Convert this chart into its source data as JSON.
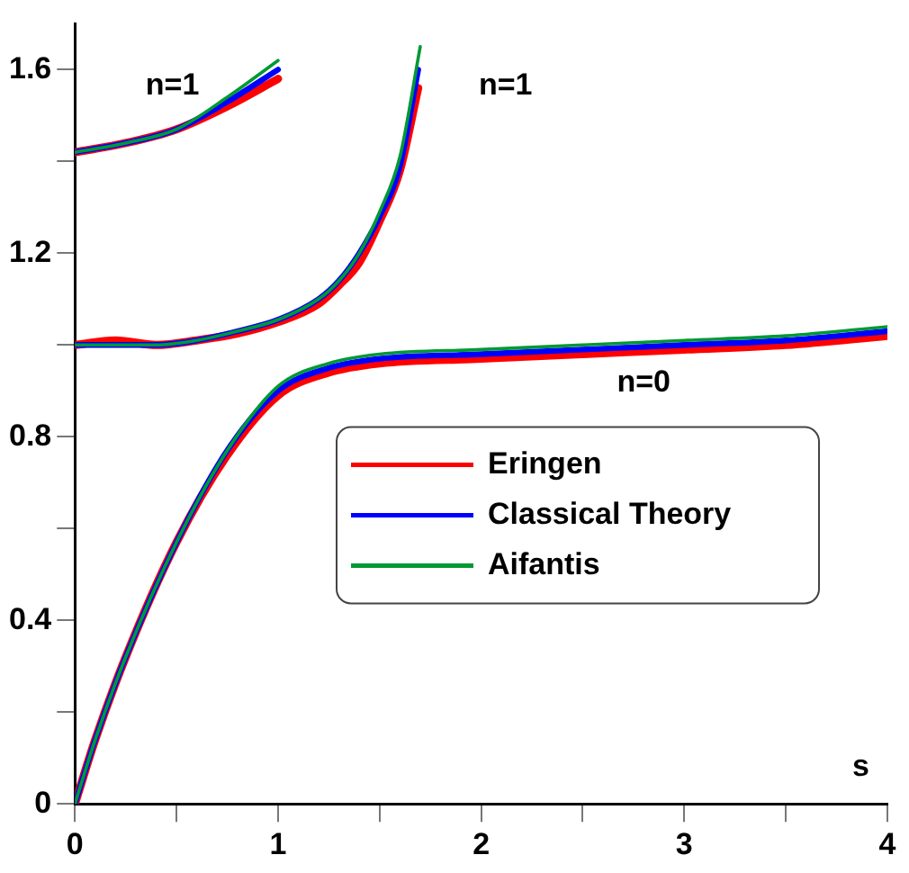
{
  "chart_data": {
    "type": "line",
    "xlabel": "s",
    "xlim": [
      0,
      4
    ],
    "ylim": [
      0,
      1.7
    ],
    "xticks": [
      0,
      {
        "value": 0.5,
        "label": null
      },
      1,
      {
        "value": 1.5,
        "label": null
      },
      2,
      {
        "value": 2.5,
        "label": null
      },
      3,
      {
        "value": 3.5,
        "label": null
      },
      4
    ],
    "yticks": [
      0,
      {
        "value": 0.2,
        "label": null
      },
      0.4,
      {
        "value": 0.6,
        "label": null
      },
      0.8,
      {
        "value": 1.0,
        "label": null
      },
      1.2,
      {
        "value": 1.4,
        "label": null
      },
      1.6
    ],
    "grid": false,
    "legend": "right",
    "marker": "none",
    "line_style": "solid",
    "annotations": [
      "n=1",
      "n=1",
      "n=0"
    ],
    "series": [
      {
        "color": "#ff0000",
        "x": [
          0,
          0.25,
          0.5,
          0.75,
          1
        ],
        "values": [
          1.42,
          1.44,
          1.47,
          1.52,
          1.58
        ]
      },
      {
        "color": "#0000ff",
        "x": [
          0,
          0.25,
          0.5,
          0.75,
          1
        ],
        "values": [
          1.42,
          1.44,
          1.47,
          1.53,
          1.6
        ]
      },
      {
        "color": "#009933",
        "x": [
          0,
          0.25,
          0.5,
          0.75,
          1
        ],
        "values": [
          1.42,
          1.44,
          1.47,
          1.54,
          1.62
        ]
      },
      {
        "color": "#ff0000",
        "x": [
          0,
          0.2,
          0.4,
          0.6,
          0.8,
          1.0,
          1.2,
          1.3,
          1.4,
          1.5,
          1.6,
          1.69
        ],
        "values": [
          1.0,
          1.01,
          1.0,
          1.01,
          1.025,
          1.05,
          1.09,
          1.13,
          1.18,
          1.27,
          1.38,
          1.56
        ]
      },
      {
        "color": "#0000ff",
        "x": [
          0,
          0.2,
          0.4,
          0.6,
          0.8,
          1.0,
          1.2,
          1.3,
          1.4,
          1.5,
          1.6,
          1.69
        ],
        "values": [
          1.0,
          1.0,
          1.0,
          1.01,
          1.03,
          1.055,
          1.1,
          1.14,
          1.2,
          1.28,
          1.39,
          1.6
        ]
      },
      {
        "color": "#009933",
        "x": [
          0,
          0.2,
          0.4,
          0.6,
          0.8,
          1.0,
          1.2,
          1.3,
          1.4,
          1.5,
          1.6,
          1.7
        ],
        "values": [
          1.0,
          1.0,
          1.0,
          1.01,
          1.03,
          1.055,
          1.1,
          1.14,
          1.2,
          1.29,
          1.41,
          1.65
        ]
      },
      {
        "name": "Eringen",
        "color": "#ff0000",
        "x": [
          0,
          0.1,
          0.25,
          0.5,
          0.75,
          1,
          1.25,
          1.5,
          2,
          2.5,
          3,
          3.5,
          4
        ],
        "values": [
          0,
          0.14,
          0.32,
          0.57,
          0.76,
          0.89,
          0.94,
          0.96,
          0.97,
          0.98,
          0.99,
          1.0,
          1.02
        ]
      },
      {
        "name": "Classical Theory",
        "color": "#0000ff",
        "x": [
          0,
          0.1,
          0.25,
          0.5,
          0.75,
          1,
          1.25,
          1.5,
          2,
          2.5,
          3,
          3.5,
          4
        ],
        "values": [
          0,
          0.14,
          0.32,
          0.57,
          0.77,
          0.9,
          0.95,
          0.97,
          0.98,
          0.99,
          1.0,
          1.01,
          1.03
        ]
      },
      {
        "name": "Aifantis",
        "color": "#009933",
        "x": [
          0,
          0.1,
          0.25,
          0.5,
          0.75,
          1,
          1.25,
          1.5,
          2,
          2.5,
          3,
          3.5,
          4
        ],
        "values": [
          0,
          0.14,
          0.32,
          0.57,
          0.77,
          0.91,
          0.96,
          0.98,
          0.99,
          1.0,
          1.01,
          1.02,
          1.04
        ]
      }
    ]
  }
}
